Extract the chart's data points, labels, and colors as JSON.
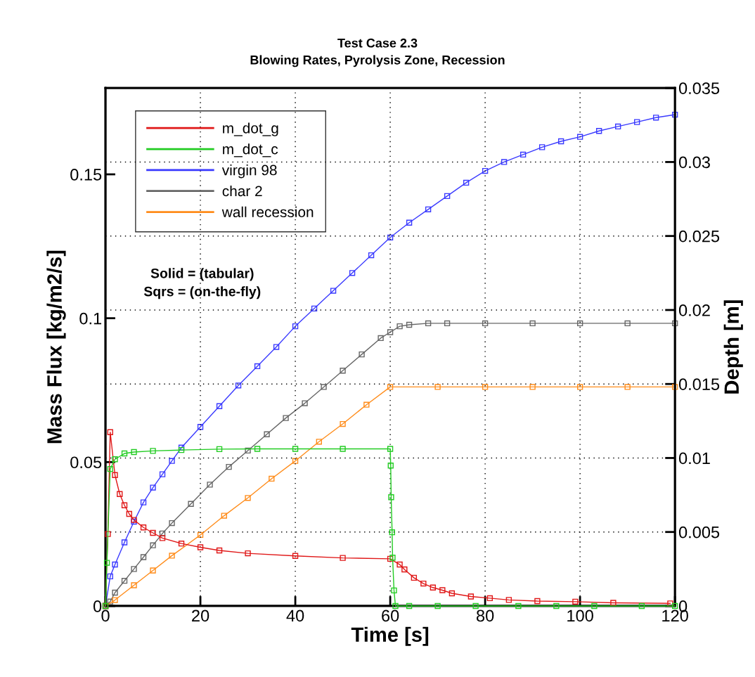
{
  "chart_data": {
    "type": "line",
    "title": "Test Case 2.3",
    "subtitle": "Blowing Rates, Pyrolysis Zone, Recession",
    "xlabel": "Time [s]",
    "ylabel": "Mass Flux [kg/m2/s]",
    "y2label": "Depth [m]",
    "annotations": [
      "Solid = (tabular)",
      "Sqrs = (on-the-fly)"
    ],
    "xlim": [
      0,
      120
    ],
    "xticks": [
      0,
      20,
      40,
      60,
      80,
      100,
      120
    ],
    "ylim": [
      0,
      0.18
    ],
    "yticks": [
      0,
      0.05,
      0.1,
      0.15
    ],
    "y2lim": [
      0,
      0.035
    ],
    "y2ticks": [
      0,
      0.005,
      0.01,
      0.015,
      0.02,
      0.025,
      0.03,
      0.035
    ],
    "grid": true,
    "legend": "top left",
    "marker": "square",
    "line_style": "solid",
    "series": [
      {
        "name": "m_dot_g",
        "color": "#e01818",
        "x": [
          0,
          0.5,
          1,
          2,
          3,
          4,
          5,
          6,
          8,
          10,
          12,
          16,
          20,
          24,
          30,
          40,
          50,
          60,
          62,
          63,
          65,
          67,
          69,
          71,
          73,
          77,
          81,
          85,
          91,
          99,
          107,
          119
        ],
        "values": [
          0,
          0.025,
          0.0604,
          0.0455,
          0.0389,
          0.035,
          0.032,
          0.0299,
          0.0273,
          0.0254,
          0.0236,
          0.0217,
          0.0204,
          0.0193,
          0.0183,
          0.0174,
          0.0167,
          0.0164,
          0.0144,
          0.0127,
          0.0098,
          0.0078,
          0.0064,
          0.0055,
          0.0044,
          0.0033,
          0.0027,
          0.0021,
          0.0017,
          0.0015,
          0.0011,
          0.0009
        ]
      },
      {
        "name": "m_dot_c",
        "color": "#22cc22",
        "x": [
          0,
          0.3,
          1,
          2,
          4,
          6,
          10,
          16,
          24,
          32,
          40,
          50,
          60,
          60.1,
          60.2,
          60.4,
          60.5,
          60.8,
          61.1,
          64,
          70,
          78,
          87,
          95,
          103,
          113,
          120
        ],
        "values": [
          0,
          0.015,
          0.0476,
          0.051,
          0.053,
          0.0535,
          0.0539,
          0.0542,
          0.0545,
          0.0546,
          0.0546,
          0.0546,
          0.0546,
          0.0488,
          0.0378,
          0.0256,
          0.0168,
          0.0054,
          0,
          0,
          0,
          0,
          0,
          0,
          0,
          0,
          0
        ]
      },
      {
        "name": "virgin 98",
        "color": "#3a3aff",
        "axis": "y2",
        "x": [
          0,
          1,
          2,
          4,
          6,
          8,
          10,
          12,
          14,
          16,
          20,
          24,
          28,
          32,
          36,
          40,
          44,
          48,
          52,
          56,
          60,
          64,
          68,
          72,
          76,
          80,
          84,
          88,
          92,
          96,
          100,
          104,
          108,
          112,
          116,
          120
        ],
        "values": [
          0,
          0.002,
          0.0028,
          0.0043,
          0.0057,
          0.007,
          0.008,
          0.0089,
          0.0098,
          0.0107,
          0.0121,
          0.0135,
          0.0149,
          0.0162,
          0.0175,
          0.0189,
          0.0201,
          0.0213,
          0.0225,
          0.0237,
          0.0249,
          0.0259,
          0.0268,
          0.0277,
          0.0286,
          0.0294,
          0.03,
          0.0305,
          0.031,
          0.0314,
          0.0317,
          0.0321,
          0.0324,
          0.0327,
          0.033,
          0.0332
        ]
      },
      {
        "name": "char 2",
        "color": "#666666",
        "axis": "y2",
        "x": [
          0,
          1,
          2,
          4,
          6,
          8,
          10,
          12,
          14,
          18,
          22,
          26,
          30,
          34,
          38,
          42,
          46,
          50,
          54,
          58,
          60,
          62,
          64,
          68,
          72,
          80,
          90,
          100,
          110,
          120
        ],
        "values": [
          0,
          0.0003,
          0.0009,
          0.0017,
          0.0025,
          0.0033,
          0.0041,
          0.0049,
          0.0056,
          0.0069,
          0.0082,
          0.0094,
          0.0105,
          0.0116,
          0.0127,
          0.0137,
          0.0148,
          0.0159,
          0.017,
          0.0181,
          0.0185,
          0.0189,
          0.019,
          0.0191,
          0.0191,
          0.0191,
          0.0191,
          0.0191,
          0.0191,
          0.0191
        ]
      },
      {
        "name": "wall recession",
        "color": "#ff8c1a",
        "axis": "y2",
        "x": [
          0,
          2,
          6,
          10,
          14,
          20,
          25,
          30,
          35,
          40,
          45,
          50,
          55,
          60,
          70,
          80,
          90,
          100,
          110,
          120
        ],
        "values": [
          0,
          0.0004,
          0.0014,
          0.0024,
          0.0034,
          0.0048,
          0.0061,
          0.0073,
          0.0086,
          0.0098,
          0.0111,
          0.0123,
          0.0136,
          0.0148,
          0.0148,
          0.0148,
          0.0148,
          0.0148,
          0.0148,
          0.0148
        ]
      }
    ]
  }
}
